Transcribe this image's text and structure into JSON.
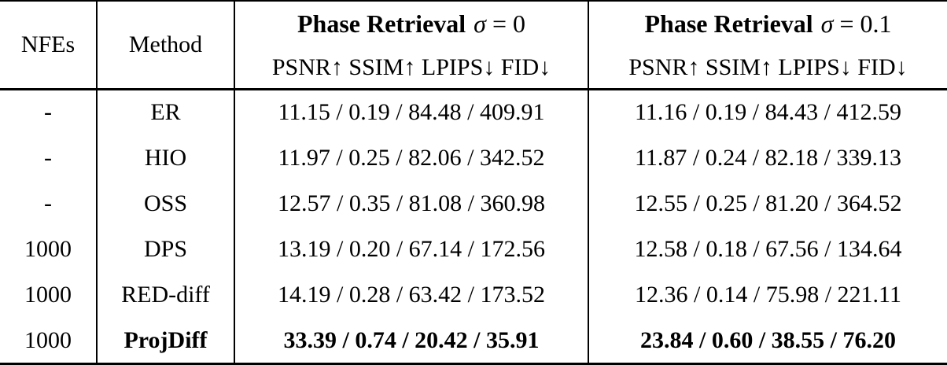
{
  "table": {
    "headers": {
      "nfes": "NFEs",
      "method": "Method"
    },
    "groups": [
      {
        "title": "Phase Retrieval",
        "sigma": "σ",
        "value": "= 0",
        "metrics": "PSNR↑ SSIM↑ LPIPS↓ FID↓"
      },
      {
        "title": "Phase Retrieval",
        "sigma": "σ",
        "value": "= 0.1",
        "metrics": "PSNR↑ SSIM↑ LPIPS↓ FID↓"
      }
    ],
    "rows": [
      {
        "nfes": "-",
        "method": "ER",
        "sigma0": "11.15 / 0.19 / 84.48 / 409.91",
        "sigma01": "11.16 / 0.19 / 84.43 / 412.59",
        "highlight": false
      },
      {
        "nfes": "-",
        "method": "HIO",
        "sigma0": "11.97 / 0.25 / 82.06 / 342.52",
        "sigma01": "11.87 / 0.24 / 82.18 / 339.13",
        "highlight": false
      },
      {
        "nfes": "-",
        "method": "OSS",
        "sigma0": "12.57 / 0.35 / 81.08 / 360.98",
        "sigma01": "12.55 / 0.25 / 81.20 / 364.52",
        "highlight": false
      },
      {
        "nfes": "1000",
        "method": "DPS",
        "sigma0": "13.19 / 0.20 / 67.14 / 172.56",
        "sigma01": "12.58 / 0.18 / 67.56 / 134.64",
        "highlight": false
      },
      {
        "nfes": "1000",
        "method": "RED-diff",
        "sigma0": "14.19 / 0.28 / 63.42 / 173.52",
        "sigma01": "12.36 / 0.14 / 75.98 / 221.11",
        "highlight": false
      },
      {
        "nfes": "1000",
        "method": "ProjDiff",
        "sigma0": "33.39 / 0.74 / 20.42 / 35.91",
        "sigma01": "23.84 / 0.60 / 38.55 / 76.20",
        "highlight": true
      }
    ],
    "colors": {
      "border": "#000000",
      "text": "#000000",
      "background": "#ffffff"
    }
  }
}
